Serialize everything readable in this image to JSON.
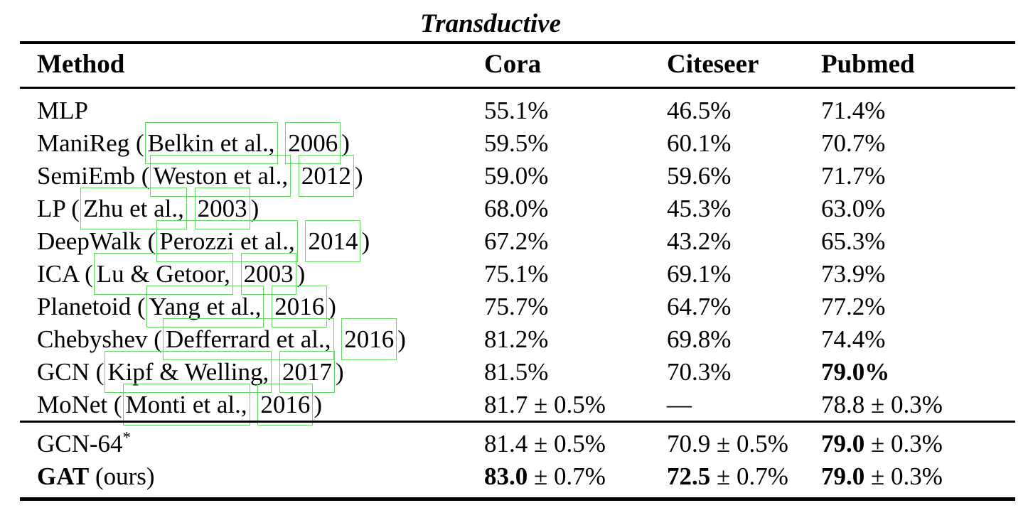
{
  "table": {
    "title": "Transductive",
    "header": {
      "method": "Method",
      "cora": "Cora",
      "citeseer": "Citeseer",
      "pubmed": "Pubmed"
    },
    "link_box_color": "#62d962",
    "groups": [
      {
        "rows": [
          {
            "method": [
              {
                "t": "MLP"
              }
            ],
            "cora": [
              {
                "t": "55.1%"
              }
            ],
            "citeseer": [
              {
                "t": "46.5%"
              }
            ],
            "pubmed": [
              {
                "t": "71.4%"
              }
            ]
          },
          {
            "method": [
              {
                "t": "ManiReg ("
              },
              {
                "t": "Belkin et al.,",
                "link": true
              },
              {
                "t": " "
              },
              {
                "t": "2006",
                "link": true
              },
              {
                "t": ")"
              }
            ],
            "cora": [
              {
                "t": "59.5%"
              }
            ],
            "citeseer": [
              {
                "t": "60.1%"
              }
            ],
            "pubmed": [
              {
                "t": "70.7%"
              }
            ]
          },
          {
            "method": [
              {
                "t": "SemiEmb ("
              },
              {
                "t": "Weston et al.,",
                "link": true
              },
              {
                "t": " "
              },
              {
                "t": "2012",
                "link": true
              },
              {
                "t": ")"
              }
            ],
            "cora": [
              {
                "t": "59.0%"
              }
            ],
            "citeseer": [
              {
                "t": "59.6%"
              }
            ],
            "pubmed": [
              {
                "t": "71.7%"
              }
            ]
          },
          {
            "method": [
              {
                "t": "LP ("
              },
              {
                "t": "Zhu et al.,",
                "link": true
              },
              {
                "t": " "
              },
              {
                "t": "2003",
                "link": true
              },
              {
                "t": ")"
              }
            ],
            "cora": [
              {
                "t": "68.0%"
              }
            ],
            "citeseer": [
              {
                "t": "45.3%"
              }
            ],
            "pubmed": [
              {
                "t": "63.0%"
              }
            ]
          },
          {
            "method": [
              {
                "t": "DeepWalk ("
              },
              {
                "t": "Perozzi et al.,",
                "link": true
              },
              {
                "t": " "
              },
              {
                "t": "2014",
                "link": true
              },
              {
                "t": ")"
              }
            ],
            "cora": [
              {
                "t": "67.2%"
              }
            ],
            "citeseer": [
              {
                "t": "43.2%"
              }
            ],
            "pubmed": [
              {
                "t": "65.3%"
              }
            ]
          },
          {
            "method": [
              {
                "t": "ICA ("
              },
              {
                "t": "Lu & Getoor,",
                "link": true
              },
              {
                "t": " "
              },
              {
                "t": "2003",
                "link": true
              },
              {
                "t": ")"
              }
            ],
            "cora": [
              {
                "t": "75.1%"
              }
            ],
            "citeseer": [
              {
                "t": "69.1%"
              }
            ],
            "pubmed": [
              {
                "t": "73.9%"
              }
            ]
          },
          {
            "method": [
              {
                "t": "Planetoid ("
              },
              {
                "t": "Yang et al.,",
                "link": true
              },
              {
                "t": " "
              },
              {
                "t": "2016",
                "link": true
              },
              {
                "t": ")"
              }
            ],
            "cora": [
              {
                "t": "75.7%"
              }
            ],
            "citeseer": [
              {
                "t": "64.7%"
              }
            ],
            "pubmed": [
              {
                "t": "77.2%"
              }
            ]
          },
          {
            "method": [
              {
                "t": "Chebyshev ("
              },
              {
                "t": "Defferrard et al.,",
                "link": true
              },
              {
                "t": " "
              },
              {
                "t": "2016",
                "link": true
              },
              {
                "t": ")"
              }
            ],
            "cora": [
              {
                "t": "81.2%"
              }
            ],
            "citeseer": [
              {
                "t": "69.8%"
              }
            ],
            "pubmed": [
              {
                "t": "74.4%"
              }
            ]
          },
          {
            "method": [
              {
                "t": "GCN ("
              },
              {
                "t": "Kipf & Welling,",
                "link": true
              },
              {
                "t": " "
              },
              {
                "t": "2017",
                "link": true
              },
              {
                "t": ")"
              }
            ],
            "cora": [
              {
                "t": "81.5%"
              }
            ],
            "citeseer": [
              {
                "t": "70.3%"
              }
            ],
            "pubmed": [
              {
                "t": "79.0%",
                "bold": true
              }
            ]
          },
          {
            "method": [
              {
                "t": "MoNet ("
              },
              {
                "t": "Monti et al.,",
                "link": true
              },
              {
                "t": " "
              },
              {
                "t": "2016",
                "link": true
              },
              {
                "t": ")"
              }
            ],
            "cora": [
              {
                "t": "81.7 ± 0.5%"
              }
            ],
            "citeseer": [
              {
                "t": "—"
              }
            ],
            "pubmed": [
              {
                "t": "78.8 ± 0.3%"
              }
            ]
          }
        ]
      },
      {
        "rows": [
          {
            "method": [
              {
                "t": "GCN-64"
              },
              {
                "t": "*",
                "sup": true
              }
            ],
            "cora": [
              {
                "t": "81.4 ± 0.5%"
              }
            ],
            "citeseer": [
              {
                "t": "70.9 ± 0.5%"
              }
            ],
            "pubmed": [
              {
                "t": "79.0",
                "bold": true
              },
              {
                "t": " ± 0.3%"
              }
            ]
          },
          {
            "method": [
              {
                "t": "GAT",
                "bold": true
              },
              {
                "t": " (ours)"
              }
            ],
            "cora": [
              {
                "t": "83.0",
                "bold": true
              },
              {
                "t": " ± 0.7%"
              }
            ],
            "citeseer": [
              {
                "t": "72.5",
                "bold": true
              },
              {
                "t": " ± 0.7%"
              }
            ],
            "pubmed": [
              {
                "t": "79.0",
                "bold": true
              },
              {
                "t": " ± 0.3%"
              }
            ]
          }
        ]
      }
    ]
  }
}
